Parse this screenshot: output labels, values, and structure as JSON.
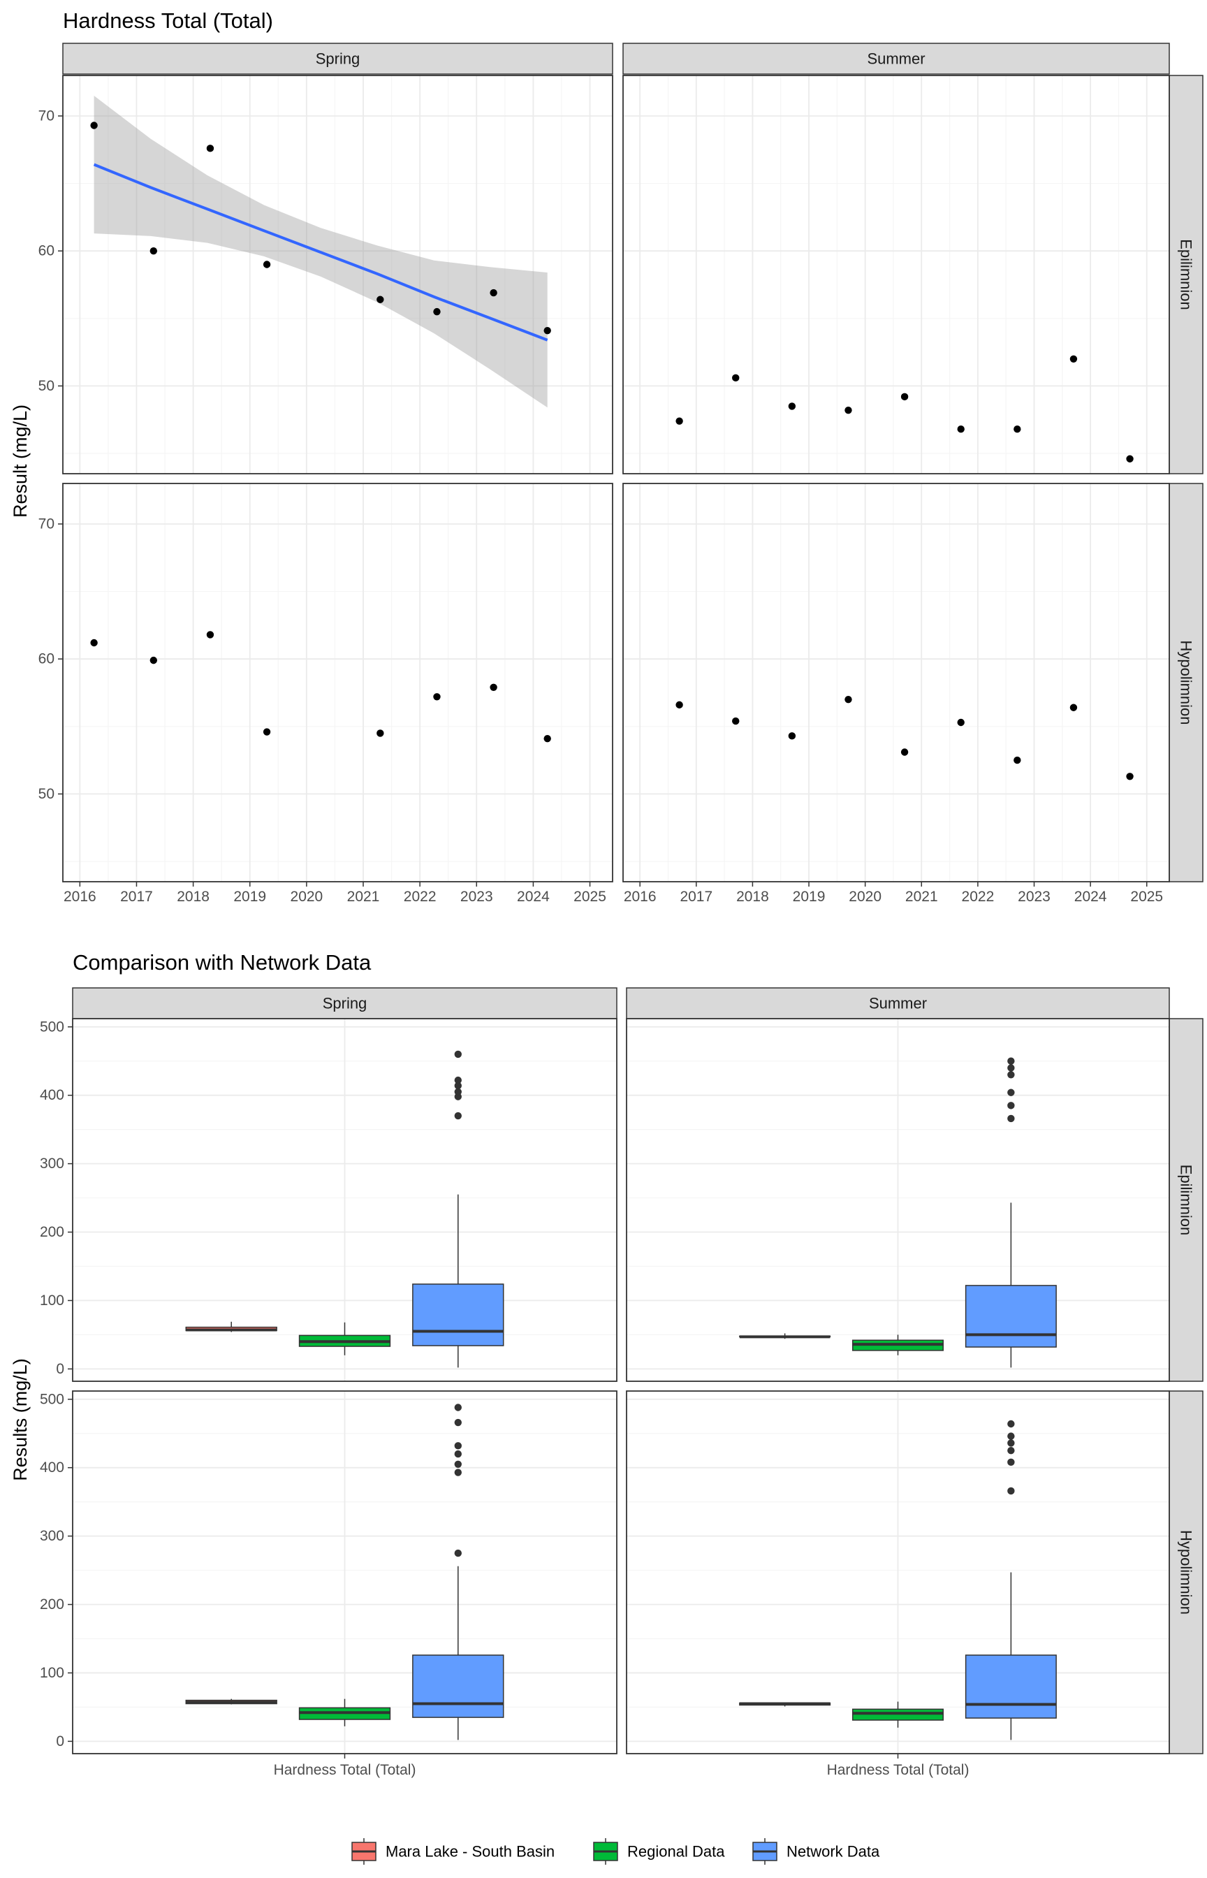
{
  "chart_data": [
    {
      "type": "scatter",
      "title": "Hardness Total (Total)",
      "ylabel": "Result (mg/L)",
      "xlabel": "",
      "xlim": [
        2015.7,
        2025.4
      ],
      "ylim": [
        43.5,
        73
      ],
      "x_ticks": [
        "2016",
        "2017",
        "2018",
        "2019",
        "2020",
        "2021",
        "2022",
        "2023",
        "2024",
        "2025"
      ],
      "y_ticks": [
        "50",
        "60",
        "70"
      ],
      "grid": true,
      "facet_columns": [
        "Spring",
        "Summer"
      ],
      "facet_rows": [
        "Epilimnion",
        "Hypolimnion"
      ],
      "panels": [
        {
          "column": "Spring",
          "row": "Epilimnion",
          "points": [
            [
              2016.25,
              69.3
            ],
            [
              2017.3,
              60.0
            ],
            [
              2018.3,
              67.6
            ],
            [
              2019.3,
              59.0
            ],
            [
              2021.3,
              56.4
            ],
            [
              2022.3,
              55.5
            ],
            [
              2023.3,
              56.9
            ],
            [
              2024.25,
              54.1
            ]
          ],
          "trend": {
            "x": [
              2016.25,
              2017.25,
              2018.25,
              2019.25,
              2020.25,
              2021.25,
              2022.25,
              2023.25,
              2024.25
            ],
            "y": [
              66.4,
              64.7,
              63.1,
              61.5,
              59.9,
              58.3,
              56.6,
              55.0,
              53.4
            ],
            "lower": [
              61.3,
              61.1,
              60.6,
              59.6,
              58.1,
              56.2,
              53.9,
              51.2,
              48.4
            ],
            "upper": [
              71.5,
              68.3,
              65.6,
              63.4,
              61.7,
              60.4,
              59.3,
              58.8,
              58.4
            ]
          }
        },
        {
          "column": "Summer",
          "row": "Epilimnion",
          "points": [
            [
              2016.7,
              47.4
            ],
            [
              2017.7,
              50.6
            ],
            [
              2018.7,
              48.5
            ],
            [
              2019.7,
              48.2
            ],
            [
              2020.7,
              49.2
            ],
            [
              2021.7,
              46.8
            ],
            [
              2022.7,
              46.8
            ],
            [
              2023.7,
              52.0
            ],
            [
              2024.7,
              44.6
            ]
          ]
        },
        {
          "column": "Spring",
          "row": "Hypolimnion",
          "points": [
            [
              2016.25,
              61.2
            ],
            [
              2017.3,
              59.9
            ],
            [
              2018.3,
              61.8
            ],
            [
              2019.3,
              54.6
            ],
            [
              2021.3,
              54.5
            ],
            [
              2022.3,
              57.2
            ],
            [
              2023.3,
              57.9
            ],
            [
              2024.25,
              54.1
            ]
          ]
        },
        {
          "column": "Summer",
          "row": "Hypolimnion",
          "points": [
            [
              2016.7,
              56.6
            ],
            [
              2017.7,
              55.4
            ],
            [
              2018.7,
              54.3
            ],
            [
              2019.7,
              57.0
            ],
            [
              2020.7,
              53.1
            ],
            [
              2021.7,
              55.3
            ],
            [
              2022.7,
              52.5
            ],
            [
              2023.7,
              56.4
            ],
            [
              2024.7,
              51.3
            ]
          ]
        }
      ],
      "colors": {
        "points": "#000000",
        "trend_line": "#3366ff",
        "ribbon": "#999999"
      }
    },
    {
      "type": "box",
      "title": "Comparison with Network Data",
      "ylabel": "Results (mg/L)",
      "xlabel": "",
      "categories": [
        "Hardness Total (Total)"
      ],
      "ylim": [
        -18,
        512
      ],
      "y_ticks": [
        "0",
        "100",
        "200",
        "300",
        "400",
        "500"
      ],
      "grid": true,
      "facet_columns": [
        "Spring",
        "Summer"
      ],
      "facet_rows": [
        "Epilimnion",
        "Hypolimnion"
      ],
      "legend": {
        "position": "bottom",
        "entries": [
          {
            "label": "Mara Lake - South Basin",
            "color": "#f8766d"
          },
          {
            "label": "Regional Data",
            "color": "#00ba38"
          },
          {
            "label": "Network Data",
            "color": "#619cff"
          }
        ]
      },
      "panels": [
        {
          "column": "Spring",
          "row": "Epilimnion",
          "boxes": [
            {
              "series": "Mara Lake - South Basin",
              "min": 54,
              "q1": 56,
              "median": 57,
              "q3": 61,
              "max": 69,
              "outliers": []
            },
            {
              "series": "Regional Data",
              "min": 20,
              "q1": 33,
              "median": 40,
              "q3": 49,
              "max": 68,
              "outliers": []
            },
            {
              "series": "Network Data",
              "min": 2,
              "q1": 34,
              "median": 55,
              "q3": 124,
              "max": 255,
              "outliers": [
                370,
                398,
                405,
                414,
                422,
                460
              ]
            }
          ]
        },
        {
          "column": "Summer",
          "row": "Epilimnion",
          "boxes": [
            {
              "series": "Mara Lake - South Basin",
              "min": 44,
              "q1": 47,
              "median": 47,
              "q3": 48,
              "max": 52,
              "outliers": []
            },
            {
              "series": "Regional Data",
              "min": 20,
              "q1": 27,
              "median": 36,
              "q3": 42,
              "max": 50,
              "outliers": []
            },
            {
              "series": "Network Data",
              "min": 2,
              "q1": 32,
              "median": 50,
              "q3": 122,
              "max": 243,
              "outliers": [
                366,
                385,
                404,
                430,
                440,
                450
              ]
            }
          ]
        },
        {
          "column": "Spring",
          "row": "Hypolimnion",
          "boxes": [
            {
              "series": "Mara Lake - South Basin",
              "min": 54,
              "q1": 55,
              "median": 57,
              "q3": 60,
              "max": 62,
              "outliers": []
            },
            {
              "series": "Regional Data",
              "min": 22,
              "q1": 32,
              "median": 42,
              "q3": 49,
              "max": 62,
              "outliers": []
            },
            {
              "series": "Network Data",
              "min": 2,
              "q1": 35,
              "median": 55,
              "q3": 126,
              "max": 256,
              "outliers": [
                275,
                393,
                405,
                420,
                432,
                466,
                488
              ]
            }
          ]
        },
        {
          "column": "Summer",
          "row": "Hypolimnion",
          "boxes": [
            {
              "series": "Mara Lake - South Basin",
              "min": 51,
              "q1": 53,
              "median": 55,
              "q3": 56,
              "max": 57,
              "outliers": []
            },
            {
              "series": "Regional Data",
              "min": 20,
              "q1": 31,
              "median": 41,
              "q3": 47,
              "max": 58,
              "outliers": []
            },
            {
              "series": "Network Data",
              "min": 2,
              "q1": 34,
              "median": 54,
              "q3": 126,
              "max": 247,
              "outliers": [
                366,
                408,
                425,
                436,
                446,
                464
              ]
            }
          ]
        }
      ]
    }
  ]
}
